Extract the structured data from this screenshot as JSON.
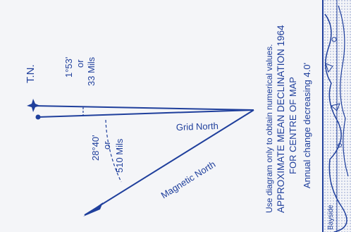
{
  "diagram": {
    "true_north_label": "T.N.",
    "grid_north_label": "Grid North",
    "magnetic_north_label": "Magnetic North",
    "grid_angle": {
      "degrees": "1°53'",
      "or": "or",
      "mils": "33 Mils"
    },
    "magnetic_angle": {
      "degrees": "28°40'",
      "or": "or",
      "mils": "510 Mils"
    },
    "notes": [
      "Use diagram only to obtain numerical values.",
      "APPROXIMATE MEAN DECLINATION 1964",
      "FOR CENTRE OF MAP",
      "Annual change decreasing 4.0'"
    ],
    "map_fragment_text": "Bayside"
  },
  "colors": {
    "ink": "#1f3f9c",
    "paper": "#f4f5f8"
  }
}
